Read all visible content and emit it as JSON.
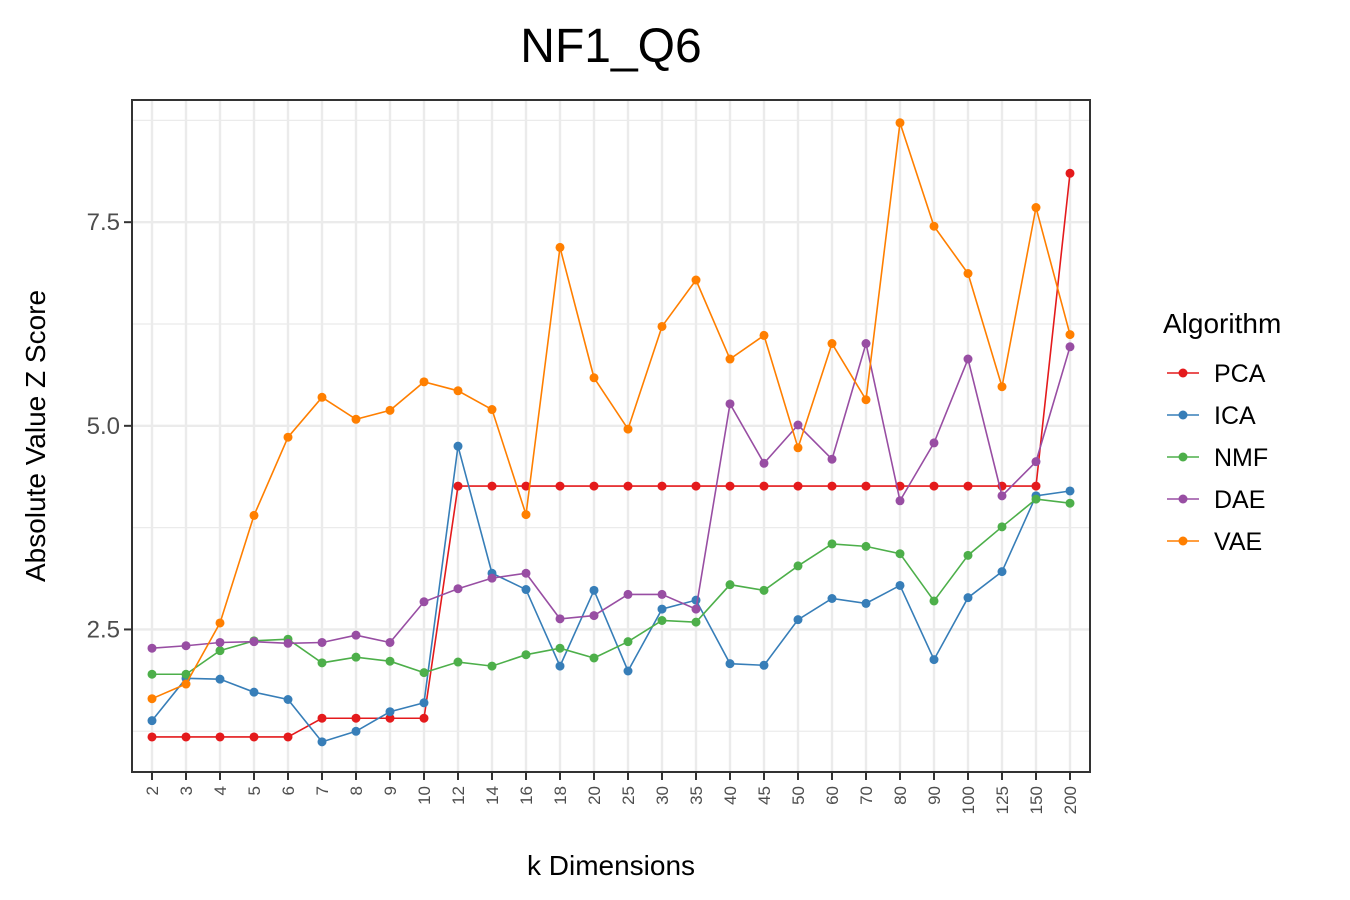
{
  "chart_data": {
    "type": "line",
    "title": "NF1_Q6",
    "xlabel": "k Dimensions",
    "ylabel": "Absolute Value Z Score",
    "categories": [
      "2",
      "3",
      "4",
      "5",
      "6",
      "7",
      "8",
      "9",
      "10",
      "12",
      "14",
      "16",
      "18",
      "20",
      "25",
      "30",
      "35",
      "40",
      "45",
      "50",
      "60",
      "70",
      "80",
      "90",
      "100",
      "125",
      "150",
      "200"
    ],
    "yticks": [
      "2.5",
      "5.0",
      "7.5"
    ],
    "ylim": [
      0.75,
      9.0
    ],
    "grid": true,
    "legend_title": "Algorithm",
    "legend_position": "right",
    "series": [
      {
        "name": "PCA",
        "color": "#E41A1C",
        "values": [
          1.18,
          1.18,
          1.18,
          1.18,
          1.18,
          1.41,
          1.41,
          1.41,
          1.41,
          4.26,
          4.26,
          4.26,
          4.26,
          4.26,
          4.26,
          4.26,
          4.26,
          4.26,
          4.26,
          4.26,
          4.26,
          4.26,
          4.26,
          4.26,
          4.26,
          4.26,
          4.26,
          8.1
        ]
      },
      {
        "name": "ICA",
        "color": "#377EB8",
        "values": [
          1.38,
          1.9,
          1.89,
          1.73,
          1.64,
          1.12,
          1.25,
          1.49,
          1.6,
          4.75,
          3.19,
          2.99,
          2.05,
          2.98,
          1.99,
          2.75,
          2.86,
          2.08,
          2.06,
          2.62,
          2.88,
          2.82,
          3.04,
          2.13,
          2.89,
          3.21,
          4.14,
          4.2
        ]
      },
      {
        "name": "NMF",
        "color": "#4DAF4A",
        "values": [
          1.95,
          1.95,
          2.24,
          2.36,
          2.38,
          2.09,
          2.16,
          2.11,
          1.97,
          2.1,
          2.05,
          2.19,
          2.27,
          2.15,
          2.35,
          2.61,
          2.59,
          3.05,
          2.98,
          3.28,
          3.55,
          3.52,
          3.43,
          2.85,
          3.41,
          3.76,
          4.1,
          4.05
        ]
      },
      {
        "name": "DAE",
        "color": "#984EA3",
        "values": [
          2.27,
          2.3,
          2.34,
          2.35,
          2.33,
          2.34,
          2.43,
          2.34,
          2.84,
          3.0,
          3.13,
          3.19,
          2.63,
          2.67,
          2.93,
          2.93,
          2.75,
          5.27,
          4.54,
          5.01,
          4.59,
          6.01,
          4.08,
          4.79,
          5.82,
          4.14,
          4.56,
          5.97
        ]
      },
      {
        "name": "VAE",
        "color": "#FF7F00",
        "values": [
          1.65,
          1.83,
          2.58,
          3.9,
          4.86,
          5.35,
          5.08,
          5.19,
          5.54,
          5.43,
          5.2,
          3.91,
          7.19,
          5.59,
          4.96,
          6.22,
          6.79,
          5.82,
          6.11,
          4.73,
          6.01,
          5.32,
          8.72,
          7.45,
          6.87,
          5.48,
          7.68,
          6.12
        ]
      }
    ]
  }
}
